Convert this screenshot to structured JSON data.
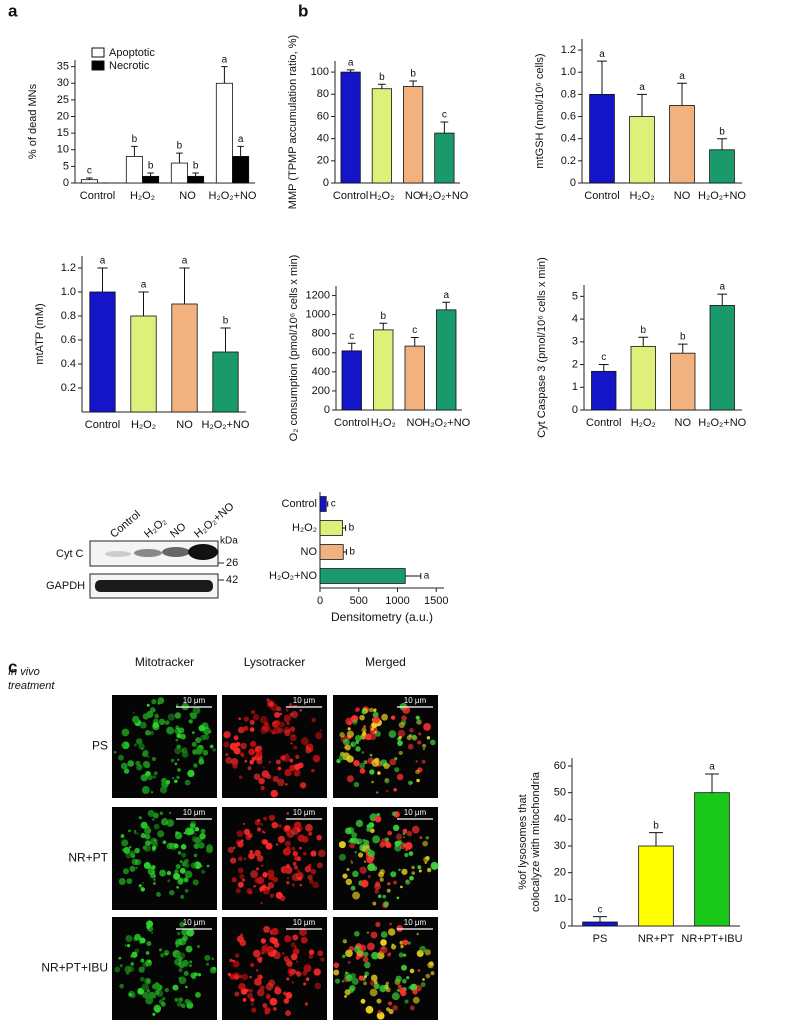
{
  "panels": {
    "a": "a",
    "b": "b",
    "c": "c"
  },
  "chart_data": [
    {
      "type": "bar",
      "ylabel": "% of dead MNs",
      "categories": [
        "Control",
        "H₂O₂",
        "NO",
        "H₂O₂+NO"
      ],
      "ylim": [
        0,
        37
      ],
      "yticks": [
        0,
        5,
        10,
        15,
        20,
        25,
        30,
        35
      ],
      "legend": "top-left",
      "series": [
        {
          "name": "Apoptotic",
          "color": "#ffffff",
          "values": [
            1,
            8,
            6,
            30
          ],
          "errors": [
            0.5,
            3,
            3,
            5
          ],
          "letters": [
            "c",
            "b",
            "b",
            "a"
          ]
        },
        {
          "name": "Necrotic",
          "color": "#000000",
          "values": [
            0,
            2,
            2,
            8
          ],
          "errors": [
            0,
            1,
            1,
            3
          ],
          "letters": [
            null,
            "b",
            "b",
            "a"
          ]
        }
      ]
    },
    {
      "type": "bar",
      "ylabel": "MMP (TPMP accumulation ratio, %)",
      "categories": [
        "Control",
        "H₂O₂",
        "NO",
        "H₂O₂+NO"
      ],
      "ylim": [
        0,
        110
      ],
      "yticks": [
        0,
        20,
        40,
        60,
        80,
        100
      ],
      "series": [
        {
          "colors": [
            "#1414c8",
            "#def07a",
            "#f2b27f",
            "#1a9a6a"
          ],
          "values": [
            100,
            85,
            87,
            45
          ],
          "errors": [
            2,
            4,
            5,
            10
          ],
          "letters": [
            "a",
            "b",
            "b",
            "c"
          ]
        }
      ]
    },
    {
      "type": "bar",
      "ylabel": "mtGSH (nmol/10⁶ cells)",
      "categories": [
        "Control",
        "H₂O₂",
        "NO",
        "H₂O₂+NO"
      ],
      "ylim": [
        0,
        1.3
      ],
      "yticks": [
        0,
        0.2,
        0.4,
        0.6,
        0.8,
        {
          "value": 1,
          "label": "1.0"
        },
        1.2
      ],
      "series": [
        {
          "colors": [
            "#1414c8",
            "#def07a",
            "#f2b27f",
            "#1a9a6a"
          ],
          "values": [
            0.8,
            0.6,
            0.7,
            0.3
          ],
          "errors": [
            0.3,
            0.2,
            0.2,
            0.1
          ],
          "letters": [
            "a",
            "a",
            "a",
            "b"
          ]
        }
      ]
    },
    {
      "type": "bar",
      "ylabel": "mtATP (mM)",
      "categories": [
        "Control",
        "H₂O₂",
        "NO",
        "H₂O₂+NO"
      ],
      "ylim": [
        0,
        1.3
      ],
      "yticks": [
        0.2,
        0.4,
        0.6,
        0.8,
        {
          "value": 1,
          "label": "1.0"
        },
        1.2
      ],
      "series": [
        {
          "colors": [
            "#1414c8",
            "#def07a",
            "#f2b27f",
            "#1a9a6a"
          ],
          "values": [
            1.0,
            0.8,
            0.9,
            0.5
          ],
          "errors": [
            0.2,
            0.2,
            0.3,
            0.2
          ],
          "letters": [
            "a",
            "a",
            "a",
            "b"
          ]
        }
      ]
    },
    {
      "type": "bar",
      "ylabel": "O₂ consumption (pmol/10⁶ cells x min)",
      "categories": [
        "Control",
        "H₂O₂",
        "NO",
        "H₂O₂+NO"
      ],
      "ylim": [
        0,
        1300
      ],
      "yticks": [
        0,
        200,
        400,
        600,
        800,
        1000,
        1200
      ],
      "series": [
        {
          "colors": [
            "#1414c8",
            "#def07a",
            "#f2b27f",
            "#1a9a6a"
          ],
          "values": [
            620,
            840,
            670,
            1050
          ],
          "errors": [
            80,
            70,
            90,
            80
          ],
          "letters": [
            "c",
            "b",
            "c",
            "a"
          ]
        }
      ]
    },
    {
      "type": "bar",
      "ylabel": "Cyt Caspase 3 (pmol/10⁶ cells x min)",
      "categories": [
        "Control",
        "H₂O₂",
        "NO",
        "H₂O₂+NO"
      ],
      "ylim": [
        0,
        5.5
      ],
      "yticks": [
        0,
        1,
        2,
        3,
        4,
        5
      ],
      "series": [
        {
          "colors": [
            "#1414c8",
            "#def07a",
            "#f2b27f",
            "#1a9a6a"
          ],
          "values": [
            1.7,
            2.8,
            2.5,
            4.6
          ],
          "errors": [
            0.3,
            0.4,
            0.4,
            0.5
          ],
          "letters": [
            "c",
            "b",
            "b",
            "a"
          ]
        }
      ]
    },
    {
      "type": "barh",
      "xlabel": "Densitometry (a.u.)",
      "categories": [
        "Control",
        "H₂O₂",
        "NO",
        "H₂O₂+NO"
      ],
      "xlim": [
        0,
        1600
      ],
      "xticks": [
        0,
        500,
        1000,
        1500
      ],
      "series": [
        {
          "colors": [
            "#1414c8",
            "#def07a",
            "#f2b27f",
            "#1a9a6a"
          ],
          "values": [
            80,
            290,
            300,
            1100
          ],
          "errors": [
            20,
            40,
            40,
            200
          ],
          "letters": [
            "c",
            "b",
            "b",
            "a"
          ]
        }
      ]
    },
    {
      "type": "bar",
      "ylabel": [
        "%of lysosomes that",
        "colocalyze with mitochondria"
      ],
      "categories": [
        "PS",
        "NR+PT",
        "NR+PT+IBU"
      ],
      "ylim": [
        0,
        63
      ],
      "yticks": [
        0,
        10,
        20,
        30,
        40,
        50,
        60
      ],
      "series": [
        {
          "colors": [
            "#1414c8",
            "#ffff00",
            "#19c819"
          ],
          "values": [
            1.5,
            30,
            50
          ],
          "errors": [
            2,
            5,
            7
          ],
          "letters": [
            "c",
            "b",
            "a"
          ]
        }
      ]
    }
  ],
  "blot": {
    "lanes": [
      "Control",
      "H₂O₂",
      "NO",
      "H₂O₂+NO"
    ],
    "rows": [
      "Cyt C",
      "GAPDH"
    ],
    "unit": "kDa",
    "markers": [
      "26",
      "42"
    ]
  },
  "imaging": {
    "corner": [
      "In vivo",
      "treatment"
    ],
    "columns": [
      "Mitotracker",
      "Lysotracker",
      "Merged"
    ],
    "rows": [
      "PS",
      "NR+PT",
      "NR+PT+IBU"
    ],
    "scale": "10 μm"
  }
}
